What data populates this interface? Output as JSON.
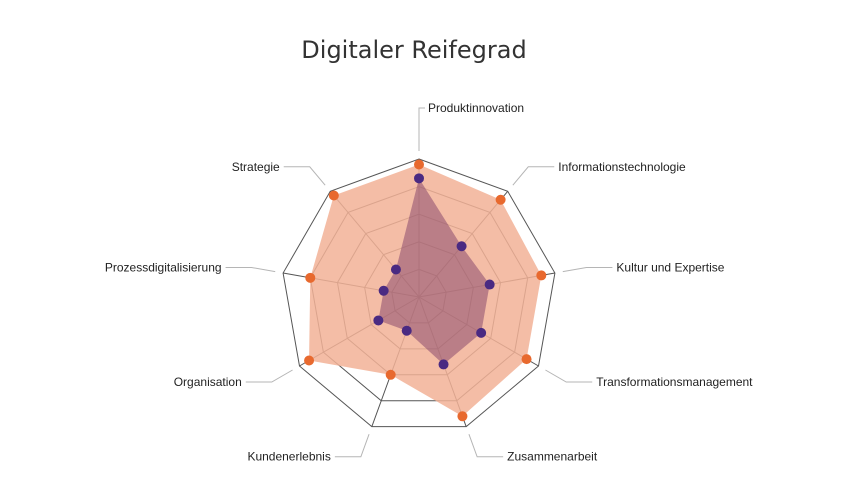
{
  "chart_data": {
    "type": "radar",
    "title": "Digitaler Reifegrad",
    "categories": [
      "Produktinnovation",
      "Informationstechnologie",
      "Kultur und Expertise",
      "Transformationsmanagement",
      "Zusammenarbeit",
      "Kundenerlebnis",
      "Organisation",
      "Prozessdigitalisierung",
      "Strategie"
    ],
    "rmax": 5,
    "grid_levels": 5,
    "series": [
      {
        "color": "#e8692e",
        "fill": "#f2b296",
        "fill_opacity": 0.85,
        "values": [
          4.8,
          4.6,
          4.5,
          4.5,
          4.6,
          3.0,
          4.6,
          4.0,
          4.8
        ]
      },
      {
        "color": "#4a2a82",
        "fill": "#8b4a6e",
        "fill_opacity": 0.55,
        "values": [
          4.3,
          2.4,
          2.6,
          2.6,
          2.6,
          1.3,
          1.7,
          1.3,
          1.3
        ]
      }
    ]
  }
}
